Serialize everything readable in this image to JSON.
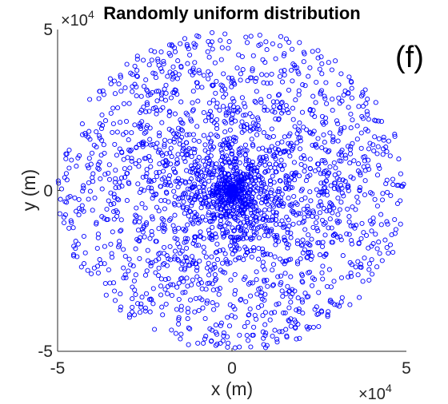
{
  "chart_data": {
    "type": "scatter",
    "title": "Randomly uniform distribution",
    "panel_label": "(f)",
    "xlabel": "x (m)",
    "ylabel": "y (m)",
    "xlim": [
      -5,
      5
    ],
    "ylim": [
      -5,
      5
    ],
    "xticks": [
      "-5",
      "0",
      "5"
    ],
    "yticks": [
      "-5",
      "0",
      "5"
    ],
    "axis_multiplier": {
      "base": "×10",
      "exponent": "4"
    },
    "grid": false,
    "marker": "circle-open",
    "series": [
      {
        "color": "#0000ff",
        "distribution": "uniform in angle and radius over a disk of radius 5 (×10^4 m)",
        "count": 2500
      }
    ]
  }
}
